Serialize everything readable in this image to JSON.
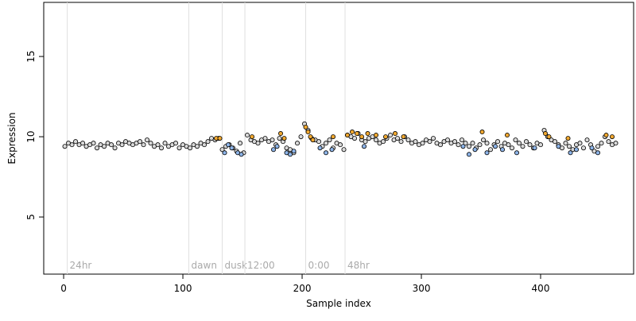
{
  "chart_data": {
    "type": "scatter",
    "x_label": "Sample index",
    "y_label": "Expression",
    "xlim": [
      -16.7,
      478
    ],
    "ylim": [
      1.44,
      18.37
    ],
    "xticks": [
      0,
      100,
      200,
      300,
      400
    ],
    "yticks": [
      5,
      10,
      15
    ],
    "annotations": [
      {
        "x": 3,
        "label": "24hr"
      },
      {
        "x": 105,
        "label": "dawn"
      },
      {
        "x": 133,
        "label": "dusk"
      },
      {
        "x": 152,
        "label": "12:00"
      },
      {
        "x": 203,
        "label": "0:00"
      },
      {
        "x": 236,
        "label": "48hr"
      }
    ],
    "series": [
      {
        "color": "#d9d9d9",
        "x": [
          1,
          4,
          7,
          10,
          13,
          16,
          19,
          22,
          25,
          28,
          31,
          34,
          37,
          40,
          43,
          46,
          49,
          52,
          55,
          58,
          61,
          64,
          67,
          70,
          73,
          76,
          79,
          82,
          85,
          88,
          91,
          94,
          97,
          100,
          103,
          106,
          109,
          112,
          115,
          118,
          121,
          124,
          127,
          130,
          133,
          136,
          139,
          142,
          145,
          148,
          151,
          154,
          157,
          160,
          163,
          166,
          169,
          172,
          175,
          178,
          181,
          184,
          187,
          190,
          193,
          196,
          199,
          202,
          205,
          208,
          211,
          214,
          217,
          220,
          223,
          226,
          229,
          232,
          235,
          238,
          241,
          244,
          247,
          250,
          253,
          256,
          259,
          262,
          265,
          268,
          271,
          274,
          277,
          280,
          283,
          286,
          289,
          292,
          295,
          298,
          301,
          304,
          307,
          310,
          313,
          316,
          319,
          322,
          325,
          328,
          331,
          334,
          337,
          340,
          343,
          346,
          349,
          352,
          355,
          358,
          361,
          364,
          367,
          370,
          373,
          376,
          379,
          382,
          385,
          388,
          391,
          394,
          397,
          400,
          403,
          406,
          409,
          412,
          415,
          418,
          421,
          424,
          427,
          430,
          433,
          436,
          439,
          442,
          445,
          448,
          451,
          454,
          457,
          460,
          463
        ],
        "values": [
          9.4,
          9.6,
          9.5,
          9.7,
          9.5,
          9.6,
          9.4,
          9.5,
          9.6,
          9.3,
          9.5,
          9.4,
          9.6,
          9.5,
          9.3,
          9.6,
          9.5,
          9.7,
          9.6,
          9.5,
          9.6,
          9.7,
          9.5,
          9.8,
          9.6,
          9.4,
          9.5,
          9.3,
          9.6,
          9.4,
          9.5,
          9.6,
          9.3,
          9.5,
          9.4,
          9.3,
          9.5,
          9.4,
          9.6,
          9.5,
          9.7,
          9.9,
          9.8,
          9.9,
          9.2,
          9.4,
          9.5,
          9.3,
          9.1,
          9.6,
          9.0,
          10.1,
          9.8,
          9.7,
          9.6,
          9.8,
          9.9,
          9.7,
          9.8,
          9.5,
          9.9,
          9.7,
          9.3,
          9.2,
          9.0,
          9.6,
          10.0,
          10.8,
          10.4,
          9.9,
          9.8,
          9.7,
          9.4,
          9.6,
          9.8,
          9.3,
          9.6,
          9.5,
          9.2,
          10.1,
          10.0,
          9.9,
          10.2,
          9.8,
          9.7,
          9.9,
          10.0,
          9.8,
          9.6,
          9.7,
          9.9,
          10.1,
          9.8,
          9.9,
          9.7,
          10.0,
          9.8,
          9.6,
          9.7,
          9.5,
          9.6,
          9.8,
          9.7,
          9.9,
          9.6,
          9.5,
          9.7,
          9.8,
          9.6,
          9.7,
          9.5,
          9.8,
          9.6,
          9.4,
          9.6,
          9.3,
          9.5,
          9.8,
          9.6,
          9.2,
          9.5,
          9.7,
          9.4,
          9.6,
          9.5,
          9.3,
          9.8,
          9.6,
          9.4,
          9.7,
          9.5,
          9.3,
          9.6,
          9.5,
          10.4,
          10.0,
          9.8,
          9.7,
          9.5,
          9.3,
          9.6,
          9.4,
          9.2,
          9.5,
          9.6,
          9.3,
          9.8,
          9.5,
          9.1,
          9.4,
          9.6,
          10.0,
          9.7,
          9.5,
          9.6
        ]
      },
      {
        "color": "#f0a830",
        "x": [
          128,
          131,
          158,
          182,
          185,
          203,
          205,
          207,
          209,
          226,
          238,
          242,
          246,
          250,
          255,
          262,
          270,
          278,
          285,
          351,
          372,
          404,
          407,
          423,
          455,
          460
        ],
        "values": [
          9.9,
          9.9,
          10.0,
          10.2,
          9.9,
          10.6,
          10.3,
          10.0,
          9.8,
          10.0,
          10.1,
          10.3,
          10.2,
          10.0,
          10.2,
          10.1,
          10.0,
          10.2,
          10.0,
          10.3,
          10.1,
          10.2,
          10.0,
          9.9,
          10.1,
          10.0
        ]
      },
      {
        "color": "#8db4e8",
        "x": [
          135,
          138,
          141,
          146,
          149,
          176,
          179,
          187,
          190,
          193,
          215,
          220,
          225,
          252,
          335,
          340,
          345,
          355,
          362,
          368,
          380,
          395,
          415,
          425,
          430,
          443,
          448
        ],
        "values": [
          9.0,
          9.5,
          9.3,
          9.0,
          8.9,
          9.2,
          9.4,
          9.0,
          8.9,
          9.1,
          9.3,
          9.0,
          9.2,
          9.4,
          9.4,
          8.9,
          9.2,
          9.0,
          9.4,
          9.2,
          9.0,
          9.3,
          9.4,
          9.0,
          9.2,
          9.3,
          9.0
        ]
      }
    ]
  }
}
